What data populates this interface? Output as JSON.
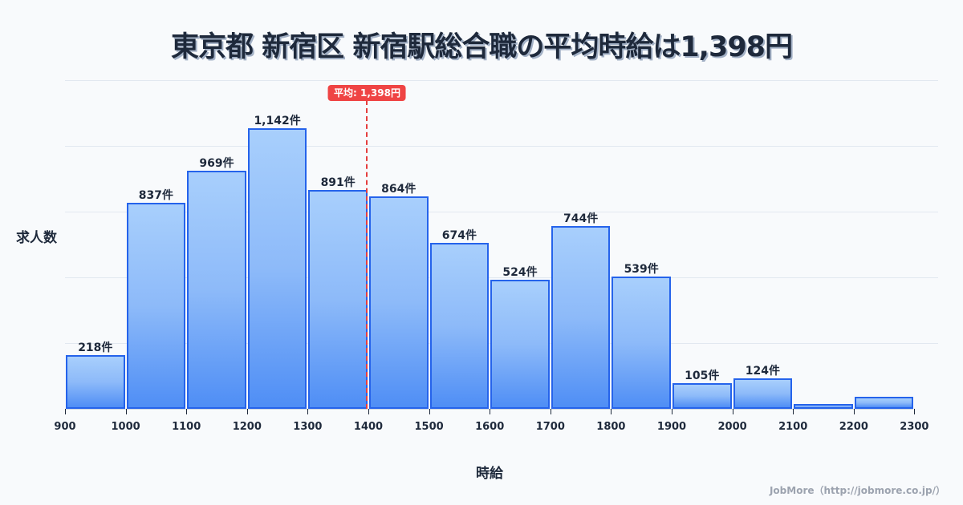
{
  "title": "東京都 新宿区 新宿駅総合職の平均時給は1,398円",
  "ylabel": "求人数",
  "xlabel": "時給",
  "credit": "JobMore（http://jobmore.co.jp/）",
  "mean_badge": "平均: 1,398円",
  "colors": {
    "bar_border": "#2563eb",
    "bar_top": "#a8cffc",
    "bar_bottom": "#4f8ef5",
    "mean": "#ef4444",
    "text": "#1e293b"
  },
  "chart_data": {
    "type": "bar",
    "title": "東京都 新宿区 新宿駅総合職の平均時給は1,398円",
    "xlabel": "時給",
    "ylabel": "求人数",
    "bin_edges": [
      900,
      1000,
      1100,
      1200,
      1300,
      1400,
      1500,
      1600,
      1700,
      1800,
      1900,
      2000,
      2100,
      2200,
      2300
    ],
    "categories": [
      "900-1000",
      "1000-1100",
      "1100-1200",
      "1200-1300",
      "1300-1400",
      "1400-1500",
      "1500-1600",
      "1600-1700",
      "1700-1800",
      "1800-1900",
      "1900-2000",
      "2000-2100",
      "2100-2200",
      "2200-2300"
    ],
    "values": [
      218,
      837,
      969,
      1142,
      891,
      864,
      674,
      524,
      744,
      539,
      105,
      124,
      20,
      49
    ],
    "labels": [
      "218件",
      "837件",
      "969件",
      "1,142件",
      "891件",
      "864件",
      "674件",
      "524件",
      "744件",
      "539件",
      "105件",
      "124件",
      "",
      ""
    ],
    "xticks": [
      "900",
      "1000",
      "1100",
      "1200",
      "1300",
      "1400",
      "1500",
      "1600",
      "1700",
      "1800",
      "1900",
      "2000",
      "2100",
      "2200",
      "2300"
    ],
    "mean": 1398,
    "mean_label": "平均: 1,398円",
    "ylim": [
      0,
      1336
    ],
    "grid": true,
    "yticks_visible": false
  }
}
